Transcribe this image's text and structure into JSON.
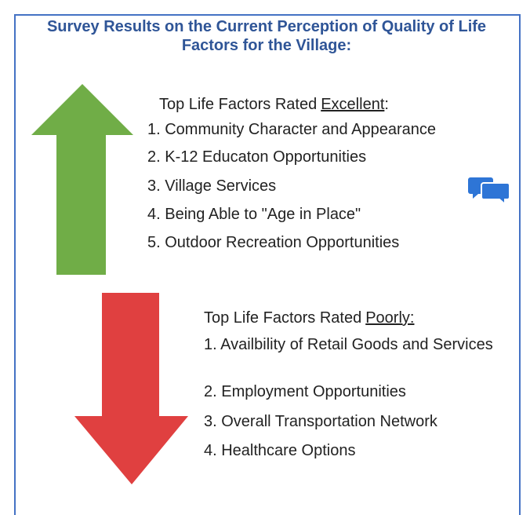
{
  "title": "Survey Results on the Current Perception of Quality of Life Factors for the Village:",
  "excellent": {
    "heading_lead": "Top Life Factors Rated",
    "heading_emphasis": "Excellent",
    "heading_suffix": ":",
    "items": [
      "1. Community Character and Appearance",
      "2. K-12 Educaton Opportunities",
      "3. Village Services",
      "4. Being Able to \"Age in Place\"",
      "5. Outdoor Recreation Opportunities"
    ]
  },
  "poorly": {
    "heading_lead": "Top Life Factors Rated",
    "heading_emphasis": "Poorly:",
    "items": [
      "1. Availbility of Retail Goods and Services",
      "2. Employment Opportunities",
      "3. Overall Transportation Network",
      "4. Healthcare Options"
    ]
  }
}
